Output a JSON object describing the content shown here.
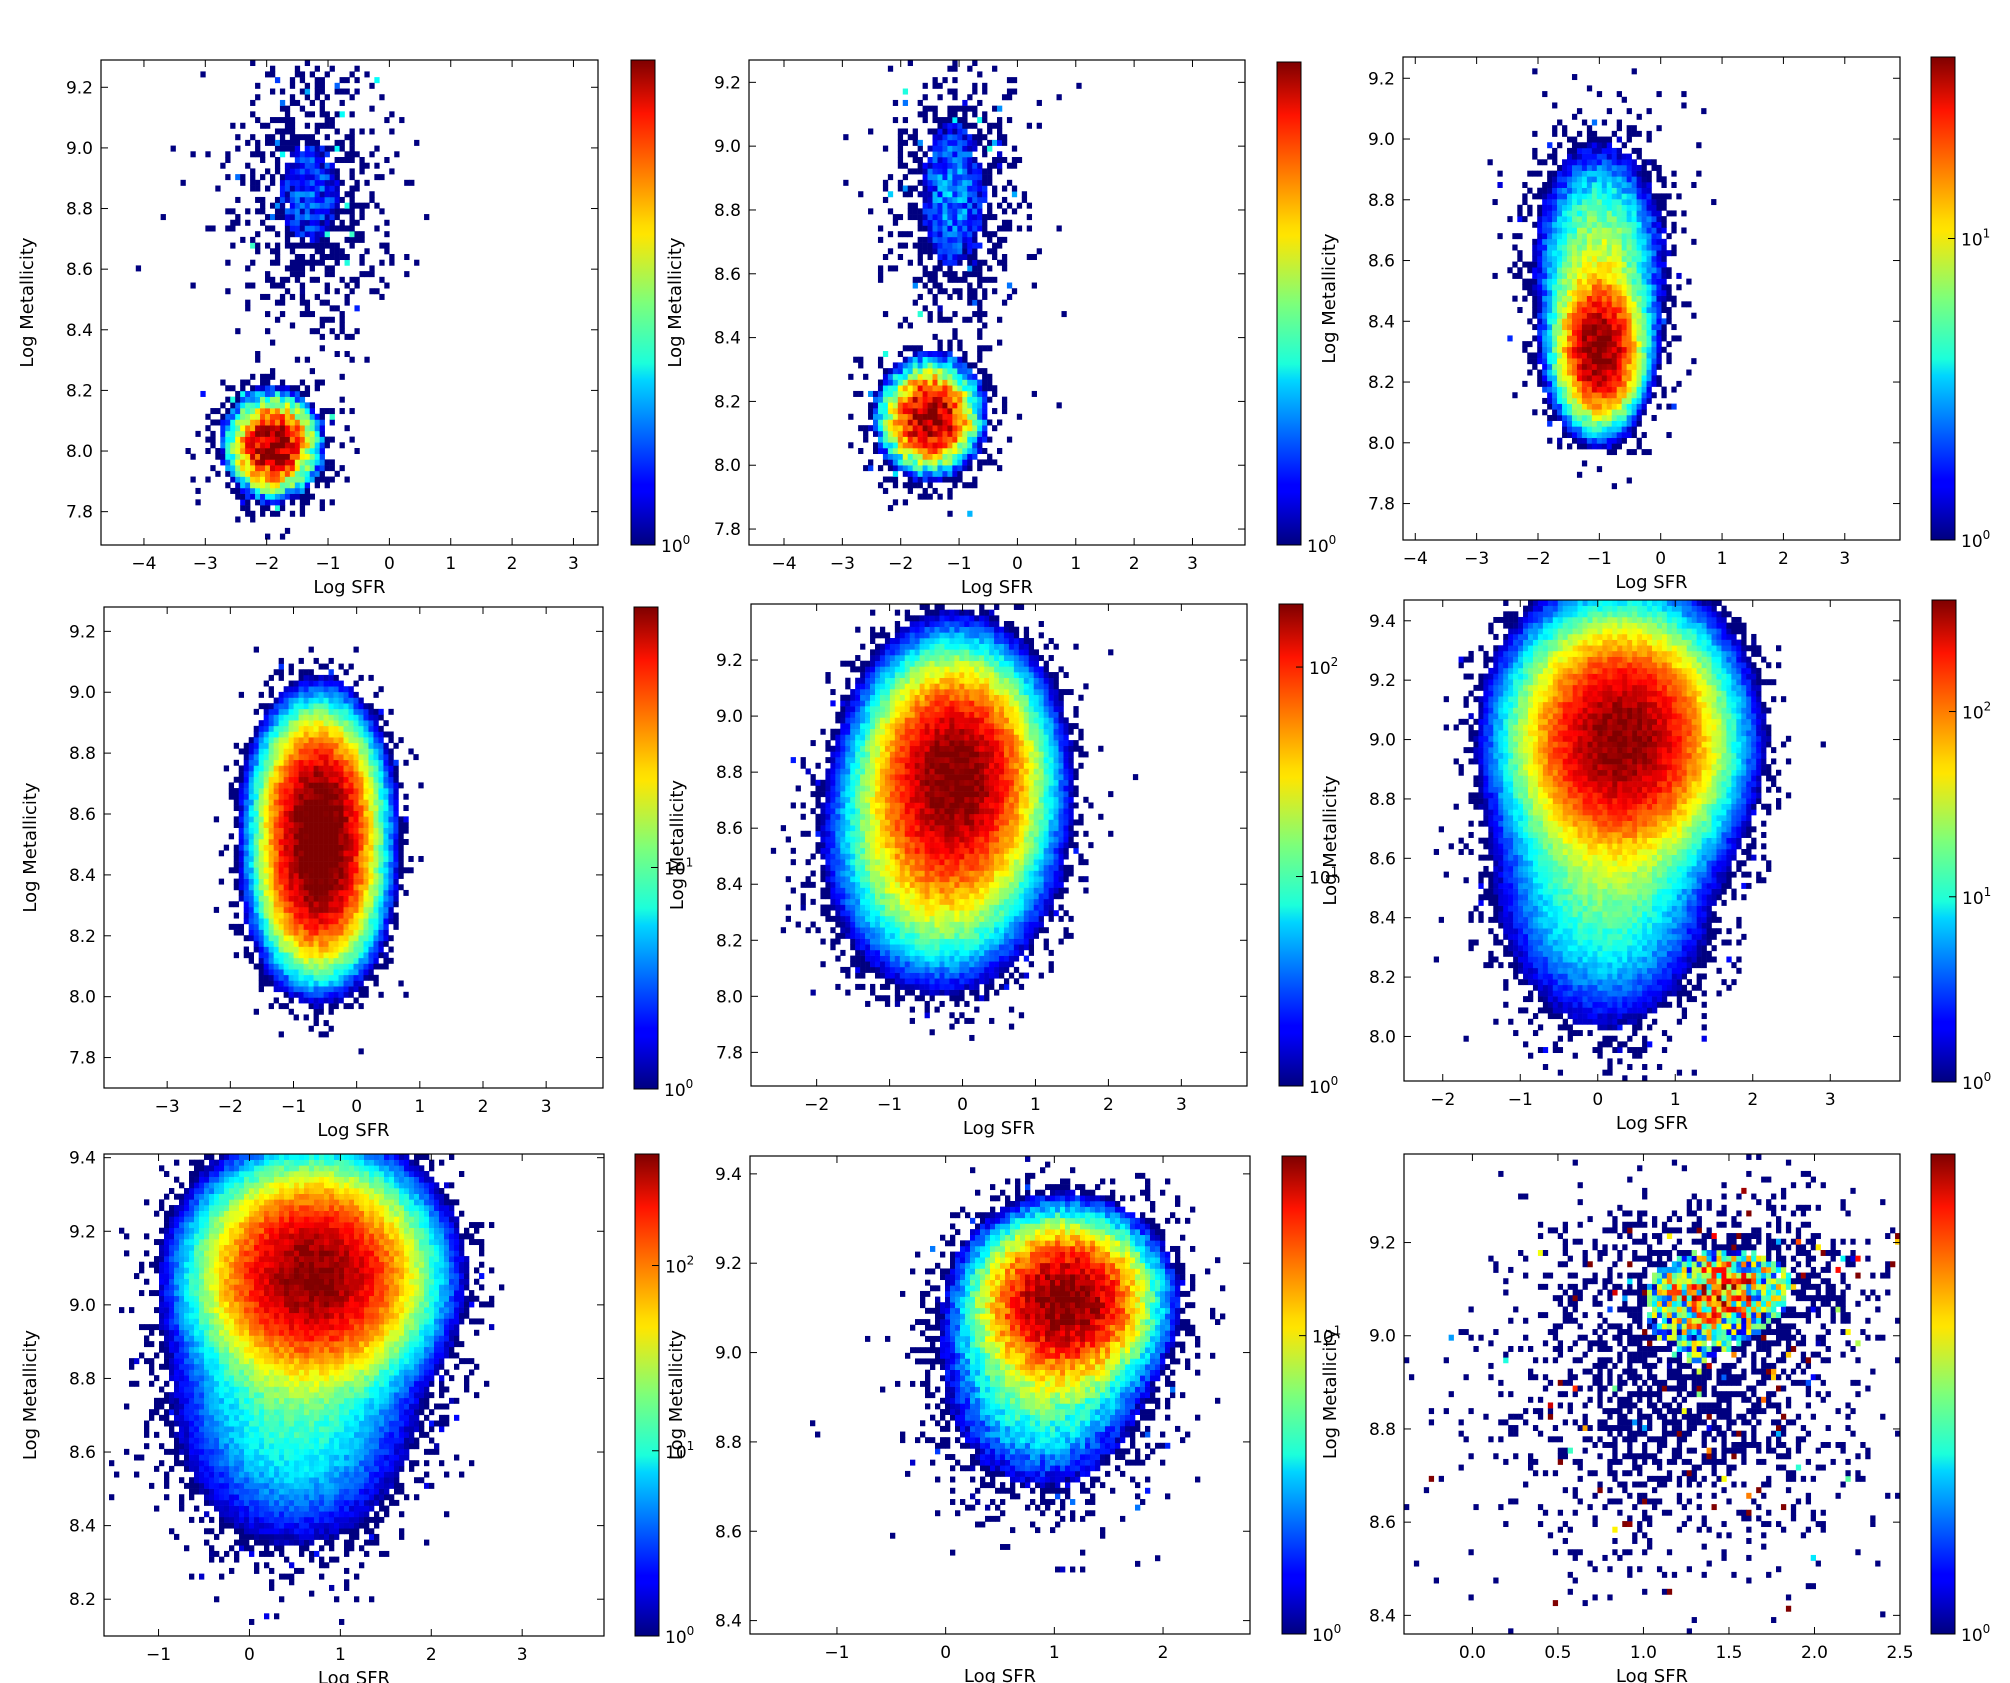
{
  "figure": {
    "layout": "3x3 grid of 2D histograms"
  },
  "chart_data": [
    {
      "type": "heatmap",
      "xlabel": "Log SFR",
      "ylabel": "Log Metallicity",
      "xlim": [
        -4.7,
        3.4
      ],
      "ylim": [
        7.69,
        9.29
      ],
      "xticks": [
        "−4",
        "−3",
        "−2",
        "−1",
        "0",
        "1",
        "2",
        "3"
      ],
      "xtick_values": [
        -4,
        -3,
        -2,
        -1,
        0,
        1,
        2,
        3
      ],
      "yticks": [
        "7.8",
        "8.0",
        "8.2",
        "8.4",
        "8.6",
        "8.8",
        "9.0",
        "9.2"
      ],
      "ytick_values": [
        7.8,
        8.0,
        8.2,
        8.4,
        8.6,
        8.8,
        9.0,
        9.2
      ],
      "colorbar": {
        "scale": "log",
        "min": 1,
        "max": 8,
        "ticks": [
          {
            "base": "10",
            "exp": "0",
            "value": 1
          }
        ]
      },
      "clusters": [
        {
          "x": -1.9,
          "y": 8.02,
          "sx": 0.45,
          "sy": 0.1,
          "peak": 8
        },
        {
          "x": -1.3,
          "y": 8.85,
          "sx": 0.7,
          "sy": 0.25,
          "peak": 1.5
        }
      ]
    },
    {
      "type": "heatmap",
      "xlabel": "Log SFR",
      "ylabel": "Log Metallicity",
      "xlim": [
        -4.6,
        3.9
      ],
      "ylim": [
        7.75,
        9.27
      ],
      "xticks": [
        "−4",
        "−3",
        "−2",
        "−1",
        "0",
        "1",
        "2",
        "3"
      ],
      "xtick_values": [
        -4,
        -3,
        -2,
        -1,
        0,
        1,
        2,
        3
      ],
      "yticks": [
        "7.8",
        "8.0",
        "8.2",
        "8.4",
        "8.6",
        "8.8",
        "9.0",
        "9.2"
      ],
      "ytick_values": [
        7.8,
        8.0,
        8.2,
        8.4,
        8.6,
        8.8,
        9.0,
        9.2
      ],
      "colorbar": {
        "scale": "log",
        "min": 1,
        "max": 9,
        "ticks": [
          {
            "base": "10",
            "exp": "0",
            "value": 1
          }
        ]
      },
      "clusters": [
        {
          "x": -1.5,
          "y": 8.15,
          "sx": 0.5,
          "sy": 0.1,
          "peak": 9
        },
        {
          "x": -1.1,
          "y": 8.85,
          "sx": 0.6,
          "sy": 0.25,
          "peak": 1.8
        }
      ]
    },
    {
      "type": "heatmap",
      "xlabel": "Log SFR",
      "ylabel": "Log Metallicity",
      "xlim": [
        -4.2,
        3.9
      ],
      "ylim": [
        7.68,
        9.27
      ],
      "xticks": [
        "−4",
        "−3",
        "−2",
        "−1",
        "0",
        "1",
        "2",
        "3"
      ],
      "xtick_values": [
        -4,
        -3,
        -2,
        -1,
        0,
        1,
        2,
        3
      ],
      "yticks": [
        "7.8",
        "8.0",
        "8.2",
        "8.4",
        "8.6",
        "8.8",
        "9.0",
        "9.2"
      ],
      "ytick_values": [
        7.8,
        8.0,
        8.2,
        8.4,
        8.6,
        8.8,
        9.0,
        9.2
      ],
      "colorbar": {
        "scale": "log",
        "min": 1,
        "max": 40,
        "ticks": [
          {
            "base": "10",
            "exp": "0",
            "value": 1
          },
          {
            "base": "10",
            "exp": "1",
            "value": 10
          }
        ]
      },
      "clusters": [
        {
          "x": -1.0,
          "y": 8.3,
          "sx": 0.35,
          "sy": 0.12,
          "peak": 40
        },
        {
          "x": -1.0,
          "y": 8.6,
          "sx": 0.55,
          "sy": 0.2,
          "peak": 8
        }
      ]
    },
    {
      "type": "heatmap",
      "xlabel": "Log SFR",
      "ylabel": "Log Metallicity",
      "xlim": [
        -4.0,
        3.9
      ],
      "ylim": [
        7.7,
        9.28
      ],
      "xticks": [
        "−3",
        "−2",
        "−1",
        "0",
        "1",
        "2",
        "3"
      ],
      "xtick_values": [
        -3,
        -2,
        -1,
        0,
        1,
        2,
        3
      ],
      "yticks": [
        "7.8",
        "8.0",
        "8.2",
        "8.4",
        "8.6",
        "8.8",
        "9.0",
        "9.2"
      ],
      "ytick_values": [
        7.8,
        8.0,
        8.2,
        8.4,
        8.6,
        8.8,
        9.0,
        9.2
      ],
      "colorbar": {
        "scale": "log",
        "min": 1,
        "max": 150,
        "ticks": [
          {
            "base": "10",
            "exp": "0",
            "value": 1
          },
          {
            "base": "10",
            "exp": "1",
            "value": 10
          }
        ]
      },
      "clusters": [
        {
          "x": -0.6,
          "y": 8.62,
          "sx": 0.4,
          "sy": 0.14,
          "peak": 150
        },
        {
          "x": -0.6,
          "y": 8.4,
          "sx": 0.4,
          "sy": 0.14,
          "peak": 140
        }
      ]
    },
    {
      "type": "heatmap",
      "xlabel": "Log SFR",
      "ylabel": "Log Metallicity",
      "xlim": [
        -2.9,
        3.9
      ],
      "ylim": [
        7.68,
        9.4
      ],
      "xticks": [
        "−2",
        "−1",
        "0",
        "1",
        "2",
        "3"
      ],
      "xtick_values": [
        -2,
        -1,
        0,
        1,
        2,
        3
      ],
      "yticks": [
        "7.8",
        "8.0",
        "8.2",
        "8.4",
        "8.6",
        "8.8",
        "9.0",
        "9.2"
      ],
      "ytick_values": [
        7.8,
        8.0,
        8.2,
        8.4,
        8.6,
        8.8,
        9.0,
        9.2
      ],
      "colorbar": {
        "scale": "log",
        "min": 1,
        "max": 200,
        "ticks": [
          {
            "base": "10",
            "exp": "0",
            "value": 1
          },
          {
            "base": "10",
            "exp": "1",
            "value": 10
          },
          {
            "base": "10",
            "exp": "2",
            "value": 100
          }
        ]
      },
      "clusters": [
        {
          "x": -0.1,
          "y": 8.8,
          "sx": 0.5,
          "sy": 0.18,
          "peak": 200
        },
        {
          "x": -0.3,
          "y": 8.55,
          "sx": 0.6,
          "sy": 0.2,
          "peak": 50
        }
      ]
    },
    {
      "type": "heatmap",
      "xlabel": "Log SFR",
      "ylabel": "Log Metallicity",
      "xlim": [
        -2.5,
        3.9
      ],
      "ylim": [
        7.85,
        9.47
      ],
      "xticks": [
        "−2",
        "−1",
        "0",
        "1",
        "2",
        "3"
      ],
      "xtick_values": [
        -2,
        -1,
        0,
        1,
        2,
        3
      ],
      "yticks": [
        "8.0",
        "8.2",
        "8.4",
        "8.6",
        "8.8",
        "9.0",
        "9.2",
        "9.4"
      ],
      "ytick_values": [
        8.0,
        8.2,
        8.4,
        8.6,
        8.8,
        9.0,
        9.2,
        9.4
      ],
      "colorbar": {
        "scale": "log",
        "min": 1,
        "max": 400,
        "ticks": [
          {
            "base": "10",
            "exp": "0",
            "value": 1
          },
          {
            "base": "10",
            "exp": "1",
            "value": 10
          },
          {
            "base": "10",
            "exp": "2",
            "value": 100
          }
        ]
      },
      "clusters": [
        {
          "x": 0.3,
          "y": 9.0,
          "sx": 0.55,
          "sy": 0.17,
          "peak": 400
        },
        {
          "x": 0.1,
          "y": 8.55,
          "sx": 0.6,
          "sy": 0.22,
          "peak": 20
        }
      ]
    },
    {
      "type": "heatmap",
      "xlabel": "Log SFR",
      "ylabel": "Log Metallicity",
      "xlim": [
        -1.6,
        3.9
      ],
      "ylim": [
        8.1,
        9.41
      ],
      "xticks": [
        "−1",
        "0",
        "1",
        "2",
        "3"
      ],
      "xtick_values": [
        -1,
        0,
        1,
        2,
        3
      ],
      "yticks": [
        "8.2",
        "8.4",
        "8.6",
        "8.8",
        "9.0",
        "9.2",
        "9.4"
      ],
      "ytick_values": [
        8.2,
        8.4,
        8.6,
        8.8,
        9.0,
        9.2,
        9.4
      ],
      "colorbar": {
        "scale": "log",
        "min": 1,
        "max": 400,
        "ticks": [
          {
            "base": "10",
            "exp": "0",
            "value": 1
          },
          {
            "base": "10",
            "exp": "1",
            "value": 10
          },
          {
            "base": "10",
            "exp": "2",
            "value": 100
          }
        ]
      },
      "clusters": [
        {
          "x": 0.7,
          "y": 9.08,
          "sx": 0.5,
          "sy": 0.12,
          "peak": 400
        },
        {
          "x": 0.5,
          "y": 8.75,
          "sx": 0.6,
          "sy": 0.18,
          "peak": 15
        }
      ]
    },
    {
      "type": "heatmap",
      "xlabel": "Log SFR",
      "ylabel": "Log Metallicity",
      "xlim": [
        -1.8,
        2.8
      ],
      "ylim": [
        8.37,
        9.44
      ],
      "xticks": [
        "−1",
        "0",
        "1",
        "2"
      ],
      "xtick_values": [
        -1,
        0,
        1,
        2
      ],
      "yticks": [
        "8.4",
        "8.6",
        "8.8",
        "9.0",
        "9.2",
        "9.4"
      ],
      "ytick_values": [
        8.4,
        8.6,
        8.8,
        9.0,
        9.2,
        9.4
      ],
      "colorbar": {
        "scale": "log",
        "min": 1,
        "max": 40,
        "ticks": [
          {
            "base": "10",
            "exp": "0",
            "value": 1
          },
          {
            "base": "10",
            "exp": "1",
            "value": 10
          }
        ]
      },
      "clusters": [
        {
          "x": 1.1,
          "y": 9.12,
          "sx": 0.4,
          "sy": 0.09,
          "peak": 40
        },
        {
          "x": 0.9,
          "y": 8.95,
          "sx": 0.5,
          "sy": 0.14,
          "peak": 6
        }
      ]
    },
    {
      "type": "heatmap",
      "xlabel": "Log SFR",
      "ylabel": "Log Metallicity",
      "xlim": [
        -0.4,
        2.5
      ],
      "ylim": [
        8.36,
        9.39
      ],
      "xticks": [
        "0.0",
        "0.5",
        "1.0",
        "1.5",
        "2.0",
        "2.5"
      ],
      "xtick_values": [
        0.0,
        0.5,
        1.0,
        1.5,
        2.0,
        2.5
      ],
      "yticks": [
        "8.4",
        "8.6",
        "8.8",
        "9.0",
        "9.2"
      ],
      "ytick_values": [
        8.4,
        8.6,
        8.8,
        9.0,
        9.2
      ],
      "colorbar": {
        "scale": "log",
        "min": 1,
        "max": 2,
        "ticks": [
          {
            "base": "10",
            "exp": "0",
            "value": 1
          }
        ]
      },
      "clusters": [
        {
          "x": 1.5,
          "y": 9.12,
          "sx": 0.5,
          "sy": 0.1,
          "peak": 1.3
        },
        {
          "x": 1.2,
          "y": 8.85,
          "sx": 0.6,
          "sy": 0.18,
          "peak": 1.1
        }
      ]
    }
  ]
}
